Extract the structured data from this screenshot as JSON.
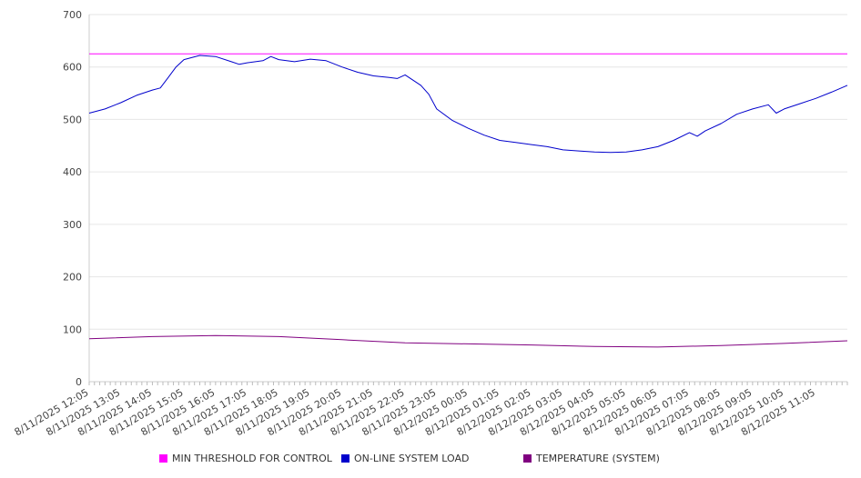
{
  "chart_data": {
    "type": "line",
    "title": "",
    "xlabel": "",
    "ylabel": "",
    "ylim": [
      0,
      700
    ],
    "y_ticks": [
      0,
      100,
      200,
      300,
      400,
      500,
      600,
      700
    ],
    "grid": true,
    "legend_position": "bottom",
    "x_tick_labels": [
      "8/11/2025 12:05",
      "8/11/2025 13:05",
      "8/11/2025 14:05",
      "8/11/2025 15:05",
      "8/11/2025 16:05",
      "8/11/2025 17:05",
      "8/11/2025 18:05",
      "8/11/2025 19:05",
      "8/11/2025 20:05",
      "8/11/2025 21:05",
      "8/11/2025 22:05",
      "8/11/2025 23:05",
      "8/12/2025 00:05",
      "8/12/2025 01:05",
      "8/12/2025 02:05",
      "8/12/2025 03:05",
      "8/12/2025 04:05",
      "8/12/2025 05:05",
      "8/12/2025 06:05",
      "8/12/2025 07:05",
      "8/12/2025 08:05",
      "8/12/2025 09:05",
      "8/12/2025 10:05",
      "8/12/2025 11:05"
    ],
    "x_start": "8/11/2025 12:05",
    "x_end": "8/12/2025 12:05",
    "series": [
      {
        "name": "MIN THRESHOLD FOR CONTROL",
        "color": "#ff00ff",
        "x": [
          "8/11/2025 12:05",
          "8/12/2025 12:05"
        ],
        "values": [
          625,
          625
        ]
      },
      {
        "name": "ON-LINE SYSTEM LOAD",
        "color": "#0000cc",
        "x": [
          "8/11/2025 12:05",
          "8/11/2025 12:35",
          "8/11/2025 13:05",
          "8/11/2025 13:35",
          "8/11/2025 14:05",
          "8/11/2025 14:20",
          "8/11/2025 14:35",
          "8/11/2025 14:50",
          "8/11/2025 15:05",
          "8/11/2025 15:35",
          "8/11/2025 16:05",
          "8/11/2025 16:35",
          "8/11/2025 16:50",
          "8/11/2025 17:05",
          "8/11/2025 17:35",
          "8/11/2025 17:50",
          "8/11/2025 18:05",
          "8/11/2025 18:35",
          "8/11/2025 19:05",
          "8/11/2025 19:35",
          "8/11/2025 20:05",
          "8/11/2025 20:35",
          "8/11/2025 21:05",
          "8/11/2025 21:35",
          "8/11/2025 21:50",
          "8/11/2025 22:05",
          "8/11/2025 22:35",
          "8/11/2025 22:50",
          "8/11/2025 23:05",
          "8/11/2025 23:35",
          "8/12/2025 00:05",
          "8/12/2025 00:35",
          "8/12/2025 01:05",
          "8/12/2025 01:35",
          "8/12/2025 02:05",
          "8/12/2025 02:35",
          "8/12/2025 03:05",
          "8/12/2025 03:35",
          "8/12/2025 04:05",
          "8/12/2025 04:35",
          "8/12/2025 05:05",
          "8/12/2025 05:35",
          "8/12/2025 06:05",
          "8/12/2025 06:35",
          "8/12/2025 07:05",
          "8/12/2025 07:20",
          "8/12/2025 07:35",
          "8/12/2025 08:05",
          "8/12/2025 08:35",
          "8/12/2025 09:05",
          "8/12/2025 09:35",
          "8/12/2025 09:50",
          "8/12/2025 10:05",
          "8/12/2025 10:35",
          "8/12/2025 11:05",
          "8/12/2025 11:35",
          "8/12/2025 12:05"
        ],
        "values": [
          512,
          520,
          532,
          546,
          556,
          560,
          580,
          600,
          614,
          622,
          620,
          610,
          605,
          608,
          612,
          620,
          614,
          610,
          615,
          612,
          600,
          590,
          583,
          580,
          578,
          585,
          565,
          548,
          520,
          498,
          483,
          470,
          460,
          456,
          452,
          448,
          442,
          440,
          438,
          437,
          438,
          442,
          448,
          460,
          475,
          468,
          478,
          492,
          510,
          520,
          528,
          512,
          520,
          530,
          540,
          552,
          565
        ]
      },
      {
        "name": "TEMPERATURE (SYSTEM)",
        "color": "#800080",
        "x": [
          "8/11/2025 12:05",
          "8/11/2025 14:05",
          "8/11/2025 16:05",
          "8/11/2025 18:05",
          "8/11/2025 20:05",
          "8/11/2025 22:05",
          "8/12/2025 00:05",
          "8/12/2025 02:05",
          "8/12/2025 04:05",
          "8/12/2025 06:05",
          "8/12/2025 08:05",
          "8/12/2025 10:05",
          "8/12/2025 12:05"
        ],
        "values": [
          82,
          86,
          88,
          86,
          80,
          74,
          72,
          70,
          67,
          66,
          69,
          73,
          78
        ]
      }
    ]
  }
}
